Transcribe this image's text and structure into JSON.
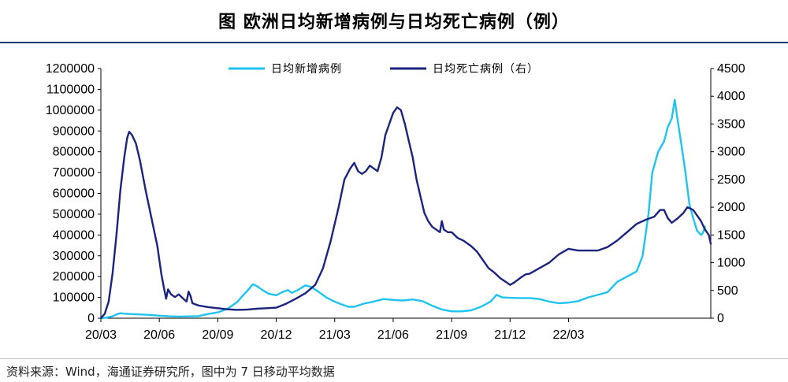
{
  "title": "图  欧洲日均新增病例与日均死亡病例（例）",
  "source": "资料来源：Wind，海通证券研究所，图中为 7 日移动平均数据",
  "chart_data": {
    "type": "line",
    "title": "图  欧洲日均新增病例与日均死亡病例（例）",
    "x_tick_labels": [
      "20/03",
      "20/06",
      "20/09",
      "20/12",
      "21/03",
      "21/06",
      "21/09",
      "21/12",
      "22/03"
    ],
    "y_left": {
      "ylim": [
        0,
        1200000
      ],
      "ticks": [
        0,
        100000,
        200000,
        300000,
        400000,
        500000,
        600000,
        700000,
        800000,
        900000,
        1000000,
        1100000,
        1200000
      ]
    },
    "y_right": {
      "ylim": [
        0,
        4500
      ],
      "ticks": [
        0,
        500,
        1000,
        1500,
        2000,
        2500,
        3000,
        3500,
        4000,
        4500
      ]
    },
    "legend": {
      "position": "top-center"
    },
    "x_unit": "months since 2020-03",
    "series": [
      {
        "name": "日均新增病例",
        "axis": "left",
        "color": "#1fc3f0",
        "points": [
          [
            0,
            0
          ],
          [
            0.3,
            3000
          ],
          [
            0.6,
            9000
          ],
          [
            0.8,
            18000
          ],
          [
            1.0,
            24000
          ],
          [
            1.2,
            22000
          ],
          [
            1.5,
            20000
          ],
          [
            2.0,
            18000
          ],
          [
            2.5,
            16000
          ],
          [
            3.0,
            12000
          ],
          [
            3.5,
            9000
          ],
          [
            4.0,
            8000
          ],
          [
            5.0,
            10000
          ],
          [
            5.5,
            20000
          ],
          [
            6.0,
            28000
          ],
          [
            6.5,
            45000
          ],
          [
            7.0,
            78000
          ],
          [
            7.3,
            110000
          ],
          [
            7.6,
            140000
          ],
          [
            7.8,
            163000
          ],
          [
            8.0,
            155000
          ],
          [
            8.3,
            135000
          ],
          [
            8.6,
            118000
          ],
          [
            9.0,
            110000
          ],
          [
            9.3,
            125000
          ],
          [
            9.6,
            135000
          ],
          [
            9.8,
            122000
          ],
          [
            10.1,
            135000
          ],
          [
            10.5,
            158000
          ],
          [
            10.8,
            150000
          ],
          [
            11.2,
            125000
          ],
          [
            11.6,
            98000
          ],
          [
            12.0,
            80000
          ],
          [
            12.3,
            68000
          ],
          [
            12.7,
            55000
          ],
          [
            13.0,
            55000
          ],
          [
            13.5,
            70000
          ],
          [
            14.0,
            80000
          ],
          [
            14.5,
            92000
          ],
          [
            15.0,
            88000
          ],
          [
            15.5,
            85000
          ],
          [
            16.0,
            90000
          ],
          [
            16.5,
            82000
          ],
          [
            17.0,
            60000
          ],
          [
            17.5,
            42000
          ],
          [
            18.0,
            33000
          ],
          [
            18.5,
            33000
          ],
          [
            19.0,
            38000
          ],
          [
            19.5,
            55000
          ],
          [
            20.0,
            80000
          ],
          [
            20.3,
            112000
          ],
          [
            20.6,
            100000
          ],
          [
            21.0,
            98000
          ],
          [
            21.5,
            97000
          ],
          [
            22.0,
            97000
          ],
          [
            22.5,
            92000
          ],
          [
            23.0,
            80000
          ],
          [
            23.5,
            72000
          ],
          [
            24.0,
            75000
          ],
          [
            24.5,
            82000
          ],
          [
            25.0,
            100000
          ],
          [
            25.5,
            112000
          ],
          [
            26.0,
            125000
          ],
          [
            26.5,
            175000
          ],
          [
            27.0,
            200000
          ],
          [
            27.5,
            225000
          ],
          [
            27.8,
            300000
          ],
          [
            28.1,
            500000
          ],
          [
            28.3,
            700000
          ],
          [
            28.6,
            800000
          ],
          [
            28.9,
            850000
          ],
          [
            29.1,
            920000
          ],
          [
            29.3,
            960000
          ],
          [
            29.45,
            1050000
          ],
          [
            29.6,
            950000
          ],
          [
            29.8,
            830000
          ],
          [
            30.0,
            700000
          ],
          [
            30.2,
            550000
          ],
          [
            30.4,
            480000
          ],
          [
            30.6,
            420000
          ],
          [
            30.8,
            400000
          ],
          [
            30.9,
            410000
          ],
          [
            31.0,
            440000
          ]
        ]
      },
      {
        "name": "日均死亡病例（右）",
        "axis": "right",
        "color": "#1a237e",
        "points": [
          [
            0,
            0
          ],
          [
            0.2,
            80
          ],
          [
            0.4,
            300
          ],
          [
            0.6,
            800
          ],
          [
            0.8,
            1500
          ],
          [
            1.0,
            2300
          ],
          [
            1.2,
            2900
          ],
          [
            1.35,
            3250
          ],
          [
            1.45,
            3360
          ],
          [
            1.6,
            3300
          ],
          [
            1.8,
            3150
          ],
          [
            2.0,
            2850
          ],
          [
            2.3,
            2300
          ],
          [
            2.6,
            1800
          ],
          [
            2.9,
            1300
          ],
          [
            3.1,
            800
          ],
          [
            3.25,
            520
          ],
          [
            3.35,
            350
          ],
          [
            3.45,
            520
          ],
          [
            3.6,
            430
          ],
          [
            3.8,
            380
          ],
          [
            4.0,
            430
          ],
          [
            4.2,
            360
          ],
          [
            4.4,
            300
          ],
          [
            4.5,
            480
          ],
          [
            4.6,
            400
          ],
          [
            4.7,
            270
          ],
          [
            5.0,
            230
          ],
          [
            5.5,
            200
          ],
          [
            6.0,
            180
          ],
          [
            6.5,
            160
          ],
          [
            7.0,
            150
          ],
          [
            7.5,
            155
          ],
          [
            8.0,
            170
          ],
          [
            8.5,
            180
          ],
          [
            9.0,
            190
          ],
          [
            9.5,
            260
          ],
          [
            10.0,
            350
          ],
          [
            10.5,
            450
          ],
          [
            11.0,
            600
          ],
          [
            11.4,
            900
          ],
          [
            11.8,
            1400
          ],
          [
            12.2,
            2000
          ],
          [
            12.5,
            2500
          ],
          [
            12.8,
            2700
          ],
          [
            13.0,
            2800
          ],
          [
            13.2,
            2650
          ],
          [
            13.4,
            2600
          ],
          [
            13.6,
            2650
          ],
          [
            13.8,
            2750
          ],
          [
            14.0,
            2700
          ],
          [
            14.2,
            2650
          ],
          [
            14.4,
            2900
          ],
          [
            14.6,
            3300
          ],
          [
            14.8,
            3500
          ],
          [
            15.0,
            3700
          ],
          [
            15.2,
            3800
          ],
          [
            15.4,
            3750
          ],
          [
            15.6,
            3500
          ],
          [
            15.8,
            3200
          ],
          [
            16.0,
            2900
          ],
          [
            16.2,
            2500
          ],
          [
            16.4,
            2200
          ],
          [
            16.6,
            1900
          ],
          [
            16.8,
            1750
          ],
          [
            17.0,
            1650
          ],
          [
            17.2,
            1600
          ],
          [
            17.4,
            1550
          ],
          [
            17.5,
            1750
          ],
          [
            17.6,
            1600
          ],
          [
            17.8,
            1550
          ],
          [
            18.0,
            1550
          ],
          [
            18.3,
            1450
          ],
          [
            18.6,
            1400
          ],
          [
            19.0,
            1300
          ],
          [
            19.3,
            1200
          ],
          [
            19.6,
            1050
          ],
          [
            19.9,
            900
          ],
          [
            20.2,
            820
          ],
          [
            20.5,
            720
          ],
          [
            20.8,
            650
          ],
          [
            21.0,
            600
          ],
          [
            21.2,
            640
          ],
          [
            21.5,
            720
          ],
          [
            21.8,
            790
          ],
          [
            22.0,
            800
          ],
          [
            22.5,
            900
          ],
          [
            23.0,
            1000
          ],
          [
            23.5,
            1150
          ],
          [
            24.0,
            1250
          ],
          [
            24.5,
            1220
          ],
          [
            25.0,
            1220
          ],
          [
            25.5,
            1220
          ],
          [
            26.0,
            1280
          ],
          [
            26.5,
            1400
          ],
          [
            27.0,
            1550
          ],
          [
            27.5,
            1700
          ],
          [
            28.0,
            1780
          ],
          [
            28.4,
            1830
          ],
          [
            28.7,
            1950
          ],
          [
            28.9,
            1950
          ],
          [
            29.1,
            1800
          ],
          [
            29.3,
            1720
          ],
          [
            29.6,
            1800
          ],
          [
            29.9,
            1900
          ],
          [
            30.1,
            2000
          ],
          [
            30.4,
            1950
          ],
          [
            30.6,
            1850
          ],
          [
            30.8,
            1750
          ],
          [
            31.0,
            1600
          ],
          [
            31.2,
            1500
          ],
          [
            31.3,
            1340
          ]
        ]
      }
    ]
  }
}
